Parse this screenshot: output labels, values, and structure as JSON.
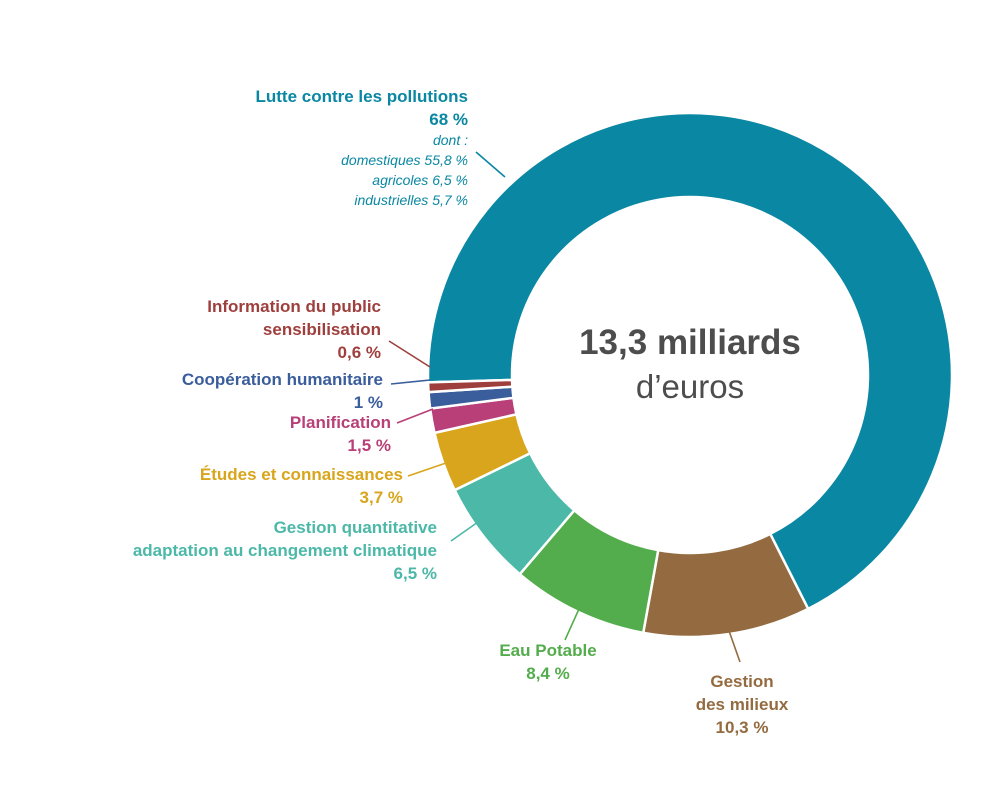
{
  "chart_data": {
    "type": "pie",
    "donut": true,
    "total_label": "13,3 milliards",
    "total_unit": "d’euros",
    "slices": [
      {
        "label": "Lutte contre les pollutions",
        "value": 68,
        "value_label": "68 %",
        "color": "#0a87a2",
        "details_title": "dont :",
        "details": [
          "domestiques 55,8 %",
          "agricoles 6,5 %",
          "industrielles 5,7 %"
        ]
      },
      {
        "label": "Gestion des milieux",
        "label_lines": [
          "Gestion",
          "des milieux"
        ],
        "value": 10.3,
        "value_label": "10,3 %",
        "color": "#946b40"
      },
      {
        "label": "Eau Potable",
        "label_lines": [
          "Eau Potable"
        ],
        "value": 8.4,
        "value_label": "8,4 %",
        "color": "#54ad4c"
      },
      {
        "label": "Gestion quantitative adaptation au changement climatique",
        "label_lines": [
          "Gestion quantitative",
          "adaptation au changement climatique"
        ],
        "value": 6.5,
        "value_label": "6,5 %",
        "color": "#4cb8a8"
      },
      {
        "label": "Études et connaissances",
        "label_lines": [
          "Études et connaissances"
        ],
        "value": 3.7,
        "value_label": "3,7 %",
        "color": "#d8a51c"
      },
      {
        "label": "Planification",
        "label_lines": [
          "Planification"
        ],
        "value": 1.5,
        "value_label": "1,5 %",
        "color": "#b83f77"
      },
      {
        "label": "Coopération humanitaire",
        "label_lines": [
          "Coopération humanitaire"
        ],
        "value": 1,
        "value_label": "1 %",
        "color": "#3a5d9c"
      },
      {
        "label": "Information du public sensibilisation",
        "label_lines": [
          "Information du public",
          "sensibilisation"
        ],
        "value": 0.6,
        "value_label": "0,6 %",
        "color": "#9e3f3d"
      }
    ]
  }
}
